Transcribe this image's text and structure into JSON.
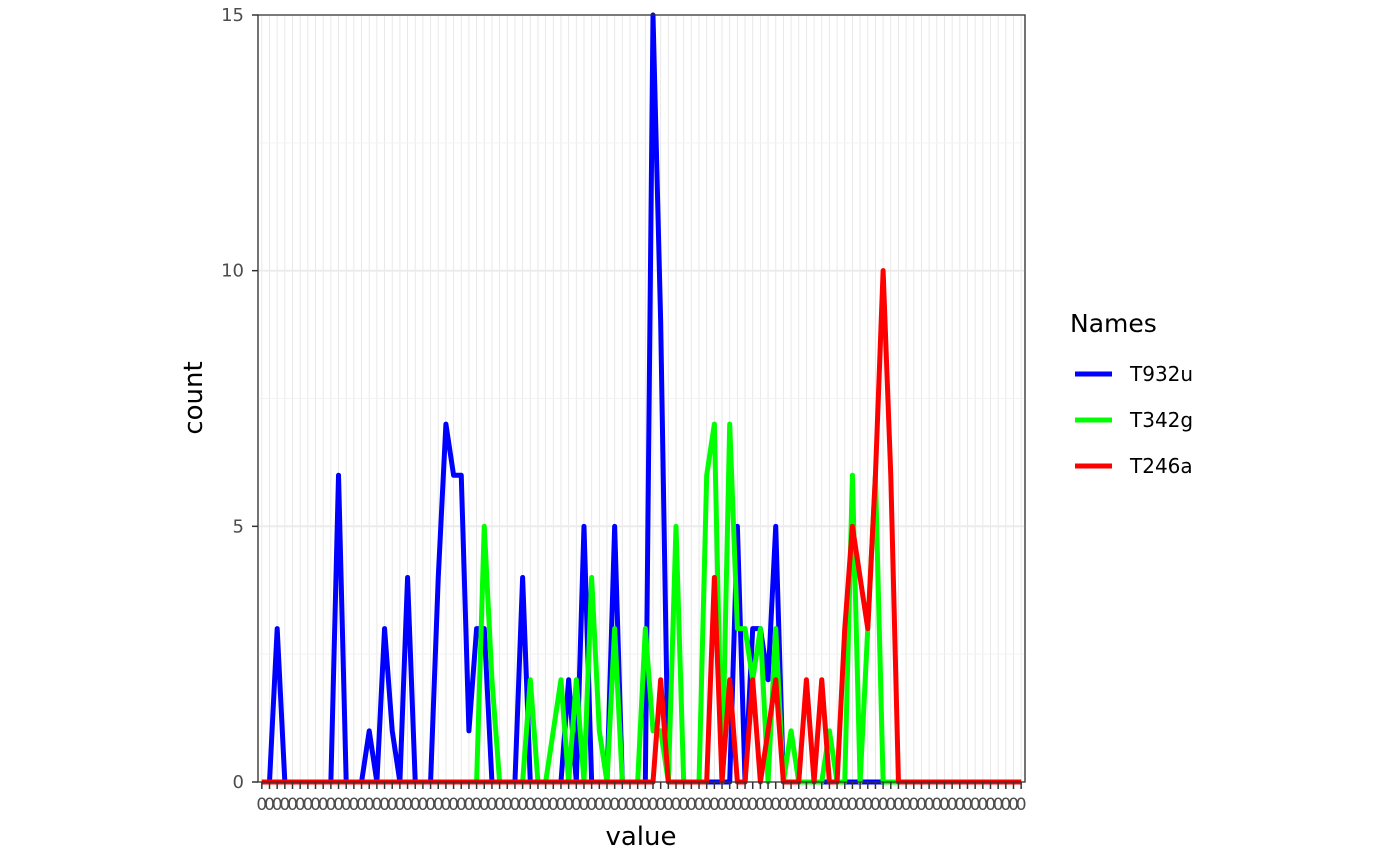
{
  "chart_data": {
    "type": "line",
    "title": "",
    "xlabel": "value",
    "ylabel": "count",
    "ylim": [
      0,
      15
    ],
    "y_ticks": [
      "0",
      "5",
      "10",
      "15"
    ],
    "x_tick_count": 100,
    "x_tick_first": "0",
    "x_tick_last": "0",
    "grid": true,
    "legend": {
      "title": "Names",
      "placement": "right"
    },
    "series": [
      {
        "name": "T932u",
        "color": "#0000ff",
        "x": [
          0,
          1,
          2,
          3,
          4,
          5,
          6,
          7,
          8,
          9,
          10,
          11,
          12,
          13,
          14,
          15,
          16,
          17,
          18,
          19,
          20,
          21,
          22,
          23,
          24,
          25,
          26,
          27,
          28,
          29,
          30,
          31,
          32,
          33,
          34,
          35,
          36,
          37,
          38,
          39,
          40,
          41,
          42,
          43,
          44,
          45,
          46,
          47,
          48,
          49,
          50,
          51,
          52,
          53,
          54,
          55,
          56,
          57,
          58,
          59,
          60,
          61,
          62,
          63,
          64,
          65,
          66,
          67,
          68,
          69,
          70,
          71,
          72,
          73,
          74,
          75,
          76,
          77,
          78,
          79,
          80,
          81,
          82,
          83,
          84,
          85,
          86,
          87,
          88,
          89,
          90,
          91,
          92,
          93,
          94,
          95,
          96,
          97,
          98,
          99
        ],
        "y": [
          0,
          0,
          3,
          0,
          0,
          0,
          0,
          0,
          0,
          0,
          6,
          0,
          0,
          0,
          1,
          0,
          3,
          1,
          0,
          4,
          0,
          0,
          0,
          4,
          7,
          6,
          6,
          1,
          3,
          3,
          0,
          0,
          0,
          0,
          4,
          0,
          0,
          0,
          0,
          0,
          2,
          0,
          5,
          0,
          0,
          0,
          5,
          0,
          0,
          0,
          0,
          15,
          9,
          0,
          0,
          0,
          0,
          0,
          0,
          0,
          0,
          0,
          5,
          0,
          3,
          3,
          2,
          5,
          0,
          0,
          0,
          0,
          0,
          0,
          0,
          0,
          0,
          0,
          0,
          0,
          0,
          0,
          0,
          0,
          0,
          0,
          0,
          0,
          0,
          0,
          0,
          0,
          0,
          0,
          0,
          0,
          0,
          0,
          0,
          0
        ]
      },
      {
        "name": "T342g",
        "color": "#00ff00",
        "x": [
          0,
          1,
          2,
          3,
          4,
          5,
          6,
          7,
          8,
          9,
          10,
          11,
          12,
          13,
          14,
          15,
          16,
          17,
          18,
          19,
          20,
          21,
          22,
          23,
          24,
          25,
          26,
          27,
          28,
          29,
          30,
          31,
          32,
          33,
          34,
          35,
          36,
          37,
          38,
          39,
          40,
          41,
          42,
          43,
          44,
          45,
          46,
          47,
          48,
          49,
          50,
          51,
          52,
          53,
          54,
          55,
          56,
          57,
          58,
          59,
          60,
          61,
          62,
          63,
          64,
          65,
          66,
          67,
          68,
          69,
          70,
          71,
          72,
          73,
          74,
          75,
          76,
          77,
          78,
          79,
          80,
          81,
          82,
          83,
          84,
          85,
          86,
          87,
          88,
          89,
          90,
          91,
          92,
          93,
          94,
          95,
          96,
          97,
          98,
          99
        ],
        "y": [
          0,
          0,
          0,
          0,
          0,
          0,
          0,
          0,
          0,
          0,
          0,
          0,
          0,
          0,
          0,
          0,
          0,
          0,
          0,
          0,
          0,
          0,
          0,
          0,
          0,
          0,
          0,
          0,
          0,
          5,
          2,
          0,
          0,
          0,
          0,
          2,
          0,
          0,
          1,
          2,
          0,
          2,
          0,
          4,
          1,
          0,
          3,
          0,
          0,
          0,
          3,
          1,
          1,
          0,
          5,
          0,
          0,
          0,
          6,
          7,
          0,
          7,
          3,
          3,
          2,
          3,
          0,
          3,
          0,
          1,
          0,
          0,
          0,
          0,
          1,
          0,
          0,
          6,
          0,
          3,
          6,
          0,
          0,
          0,
          0,
          0,
          0,
          0,
          0,
          0,
          0,
          0,
          0,
          0,
          0,
          0,
          0,
          0,
          0,
          0
        ]
      },
      {
        "name": "T246a",
        "color": "#ff0000",
        "x": [
          0,
          1,
          2,
          3,
          4,
          5,
          6,
          7,
          8,
          9,
          10,
          11,
          12,
          13,
          14,
          15,
          16,
          17,
          18,
          19,
          20,
          21,
          22,
          23,
          24,
          25,
          26,
          27,
          28,
          29,
          30,
          31,
          32,
          33,
          34,
          35,
          36,
          37,
          38,
          39,
          40,
          41,
          42,
          43,
          44,
          45,
          46,
          47,
          48,
          49,
          50,
          51,
          52,
          53,
          54,
          55,
          56,
          57,
          58,
          59,
          60,
          61,
          62,
          63,
          64,
          65,
          66,
          67,
          68,
          69,
          70,
          71,
          72,
          73,
          74,
          75,
          76,
          77,
          78,
          79,
          80,
          81,
          82,
          83,
          84,
          85,
          86,
          87,
          88,
          89,
          90,
          91,
          92,
          93,
          94,
          95,
          96,
          97,
          98,
          99
        ],
        "y": [
          0,
          0,
          0,
          0,
          0,
          0,
          0,
          0,
          0,
          0,
          0,
          0,
          0,
          0,
          0,
          0,
          0,
          0,
          0,
          0,
          0,
          0,
          0,
          0,
          0,
          0,
          0,
          0,
          0,
          0,
          0,
          0,
          0,
          0,
          0,
          0,
          0,
          0,
          0,
          0,
          0,
          0,
          0,
          0,
          0,
          0,
          0,
          0,
          0,
          0,
          0,
          0,
          2,
          0,
          0,
          0,
          0,
          0,
          0,
          4,
          0,
          2,
          0,
          0,
          2,
          0,
          1,
          2,
          0,
          0,
          0,
          2,
          0,
          2,
          0,
          0,
          3,
          5,
          4,
          3,
          6,
          10,
          6,
          0,
          0,
          0,
          0,
          0,
          0,
          0,
          0,
          0,
          0,
          0,
          0,
          0,
          0,
          0,
          0,
          0
        ]
      }
    ]
  }
}
